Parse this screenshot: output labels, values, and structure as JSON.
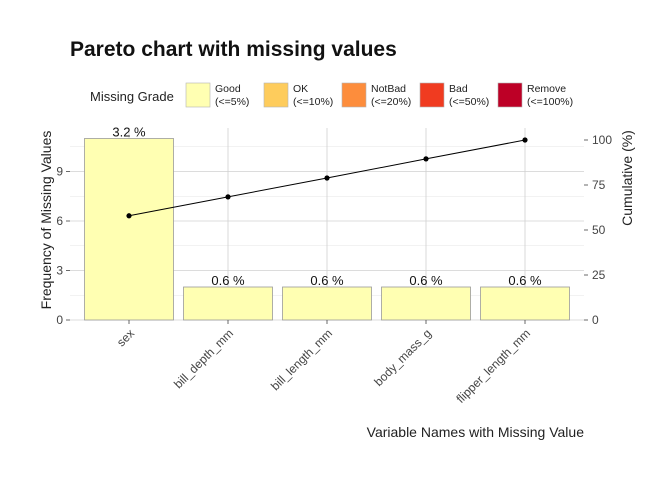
{
  "chart_data": {
    "type": "bar",
    "title": "Pareto chart with missing values",
    "xlabel": "Variable Names with Missing Value",
    "ylabel": "Frequency of Missing Values",
    "y2label": "Cumulative (%)",
    "categories": [
      "sex",
      "bill_depth_mm",
      "bill_length_mm",
      "body_mass_g",
      "flipper_length_mm"
    ],
    "values": [
      11,
      2,
      2,
      2,
      2
    ],
    "bar_labels": [
      "3.2 %",
      "0.6 %",
      "0.6 %",
      "0.6 %",
      "0.6 %"
    ],
    "cumulative": [
      57.9,
      68.4,
      78.9,
      89.5,
      100
    ],
    "ylim": [
      0,
      11
    ],
    "yticks": [
      0,
      3,
      6,
      9
    ],
    "y2lim": [
      0,
      100
    ],
    "y2ticks": [
      0,
      25,
      50,
      75,
      100
    ],
    "bar_color": "#FFFFB2",
    "bar_outline": "#9a9a9a",
    "line_color": "#000000",
    "grid": true,
    "legend": {
      "position": "top",
      "title": "Missing Grade",
      "items": [
        {
          "label_line1": "Good",
          "label_line2": "(<=5%)",
          "color": "#FFFFB2"
        },
        {
          "label_line1": "OK",
          "label_line2": "(<=10%)",
          "color": "#FECC5C"
        },
        {
          "label_line1": "NotBad",
          "label_line2": "(<=20%)",
          "color": "#FD8D3C"
        },
        {
          "label_line1": "Bad",
          "label_line2": "(<=50%)",
          "color": "#F03B20"
        },
        {
          "label_line1": "Remove",
          "label_line2": "(<=100%)",
          "color": "#BD0026"
        }
      ]
    }
  }
}
